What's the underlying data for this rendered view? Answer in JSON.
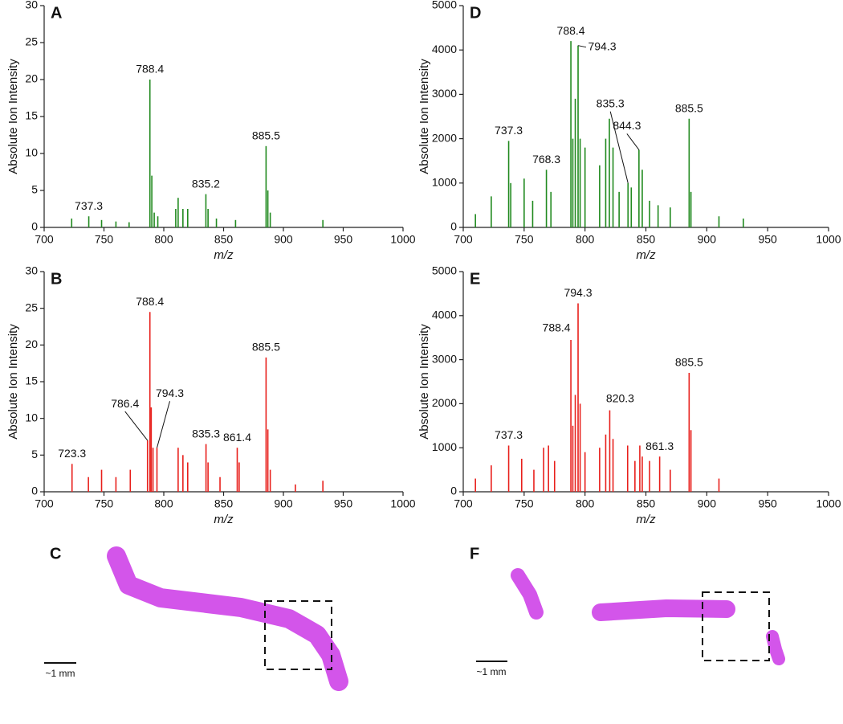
{
  "chart_data": [
    {
      "type": "stick",
      "label": "A",
      "color": "#218a1f",
      "xlabel": "m/z",
      "ylabel": "Absolute Ion Intensity",
      "xlim": [
        700,
        1000
      ],
      "xticks": [
        700,
        750,
        800,
        850,
        900,
        950,
        1000
      ],
      "ylim": [
        0,
        30
      ],
      "yticks": [
        0,
        5,
        10,
        15,
        20,
        25,
        30
      ],
      "x": [
        723,
        737.3,
        748,
        760,
        771,
        788.4,
        790,
        792,
        795,
        810,
        812,
        816,
        820,
        835.2,
        837,
        844,
        860,
        885.5,
        887,
        889,
        933
      ],
      "values": [
        1.2,
        1.5,
        1,
        0.8,
        0.7,
        20,
        7,
        2,
        1.5,
        2.5,
        4,
        2.5,
        2.5,
        4.5,
        2.5,
        1.2,
        1,
        11,
        5,
        2,
        1
      ],
      "annotations": [
        {
          "text": "737.3",
          "x": 737.3,
          "y": 1.5
        },
        {
          "text": "788.4",
          "x": 788.4,
          "y": 20
        },
        {
          "text": "835.2",
          "x": 835.2,
          "y": 4.5
        },
        {
          "text": "885.5",
          "x": 885.5,
          "y": 11
        }
      ]
    },
    {
      "type": "stick",
      "label": "B",
      "color": "#e8201c",
      "xlabel": "m/z",
      "ylabel": "Absolute Ion Intensity",
      "xlim": [
        700,
        1000
      ],
      "xticks": [
        700,
        750,
        800,
        850,
        900,
        950,
        1000
      ],
      "ylim": [
        0,
        30
      ],
      "yticks": [
        0,
        5,
        10,
        15,
        20,
        25,
        30
      ],
      "x": [
        723.3,
        737,
        748,
        760,
        772,
        786.4,
        788.4,
        789.5,
        791,
        794.3,
        812,
        816,
        820,
        835.3,
        837,
        847,
        861.4,
        863,
        885.5,
        887,
        889,
        910,
        933
      ],
      "values": [
        3.8,
        2,
        3,
        2,
        3,
        7,
        24.5,
        11.5,
        6,
        6,
        6,
        5,
        4,
        6.5,
        4,
        2,
        6,
        4,
        18.3,
        8.5,
        3,
        1,
        1.5
      ],
      "annotations": [
        {
          "text": "723.3",
          "x": 723.3,
          "y": 3.8
        },
        {
          "text": "786.4",
          "x": 786.4,
          "y": 7
        },
        {
          "text": "788.4",
          "x": 788.4,
          "y": 24.5
        },
        {
          "text": "794.3",
          "x": 794.3,
          "y": 6
        },
        {
          "text": "835.3",
          "x": 835.3,
          "y": 6.5
        },
        {
          "text": "861.4",
          "x": 861.4,
          "y": 6
        },
        {
          "text": "885.5",
          "x": 885.5,
          "y": 18.3
        }
      ]
    },
    {
      "type": "stick",
      "label": "D",
      "color": "#218a1f",
      "xlabel": "m/z",
      "ylabel": "Absolute Ion Intensity",
      "xlim": [
        700,
        1000
      ],
      "xticks": [
        700,
        750,
        800,
        850,
        900,
        950,
        1000
      ],
      "ylim": [
        0,
        5000
      ],
      "yticks": [
        0,
        1000,
        2000,
        3000,
        4000,
        5000
      ],
      "x": [
        710,
        723,
        737.3,
        739,
        750,
        757,
        768.3,
        772,
        788.4,
        790,
        792,
        794.3,
        796,
        800,
        812,
        817,
        820,
        823,
        828,
        835.3,
        838,
        844.3,
        847,
        853,
        860,
        870,
        885.5,
        887,
        910,
        930
      ],
      "values": [
        300,
        700,
        1950,
        1000,
        1100,
        600,
        1300,
        800,
        4200,
        2000,
        2900,
        4100,
        2000,
        1800,
        1400,
        2000,
        2450,
        1800,
        800,
        1000,
        900,
        1750,
        1300,
        600,
        500,
        450,
        2450,
        800,
        250,
        200
      ],
      "annotations": [
        {
          "text": "737.3",
          "x": 737.3,
          "y": 1950
        },
        {
          "text": "768.3",
          "x": 768.3,
          "y": 1300
        },
        {
          "text": "788.4",
          "x": 788.4,
          "y": 4200
        },
        {
          "text": "794.3",
          "x": 794.3,
          "y": 4100
        },
        {
          "text": "835.3",
          "x": 835.3,
          "y": 1000
        },
        {
          "text": "844.3",
          "x": 844.3,
          "y": 1750
        },
        {
          "text": "885.5",
          "x": 885.5,
          "y": 2450
        }
      ]
    },
    {
      "type": "stick",
      "label": "E",
      "color": "#e8201c",
      "xlabel": "m/z",
      "ylabel": "Absolute Ion Intensity",
      "xlim": [
        700,
        1000
      ],
      "xticks": [
        700,
        750,
        800,
        850,
        900,
        950,
        1000
      ],
      "ylim": [
        0,
        5000
      ],
      "yticks": [
        0,
        1000,
        2000,
        3000,
        4000,
        5000
      ],
      "x": [
        710,
        723,
        737.3,
        748,
        758,
        766,
        770,
        775,
        788.4,
        790,
        792,
        794.3,
        796,
        800,
        812,
        817,
        820.3,
        823,
        835,
        841,
        845,
        847,
        853,
        861.3,
        870,
        885.5,
        887,
        910
      ],
      "values": [
        300,
        600,
        1050,
        750,
        500,
        1000,
        1050,
        700,
        3450,
        1500,
        2200,
        4280,
        2000,
        900,
        1000,
        1300,
        1850,
        1200,
        1050,
        700,
        1050,
        800,
        700,
        800,
        500,
        2700,
        1400,
        300
      ],
      "annotations": [
        {
          "text": "737.3",
          "x": 737.3,
          "y": 1050
        },
        {
          "text": "788.4",
          "x": 788.4,
          "y": 3450
        },
        {
          "text": "794.3",
          "x": 794.3,
          "y": 4280
        },
        {
          "text": "820.3",
          "x": 820.3,
          "y": 1850
        },
        {
          "text": "861.3",
          "x": 861.3,
          "y": 800
        },
        {
          "text": "885.5",
          "x": 885.5,
          "y": 2700
        }
      ]
    }
  ],
  "images": [
    {
      "label": "C",
      "scale_label": "~1 mm"
    },
    {
      "label": "F",
      "scale_label": "~1 mm"
    }
  ]
}
